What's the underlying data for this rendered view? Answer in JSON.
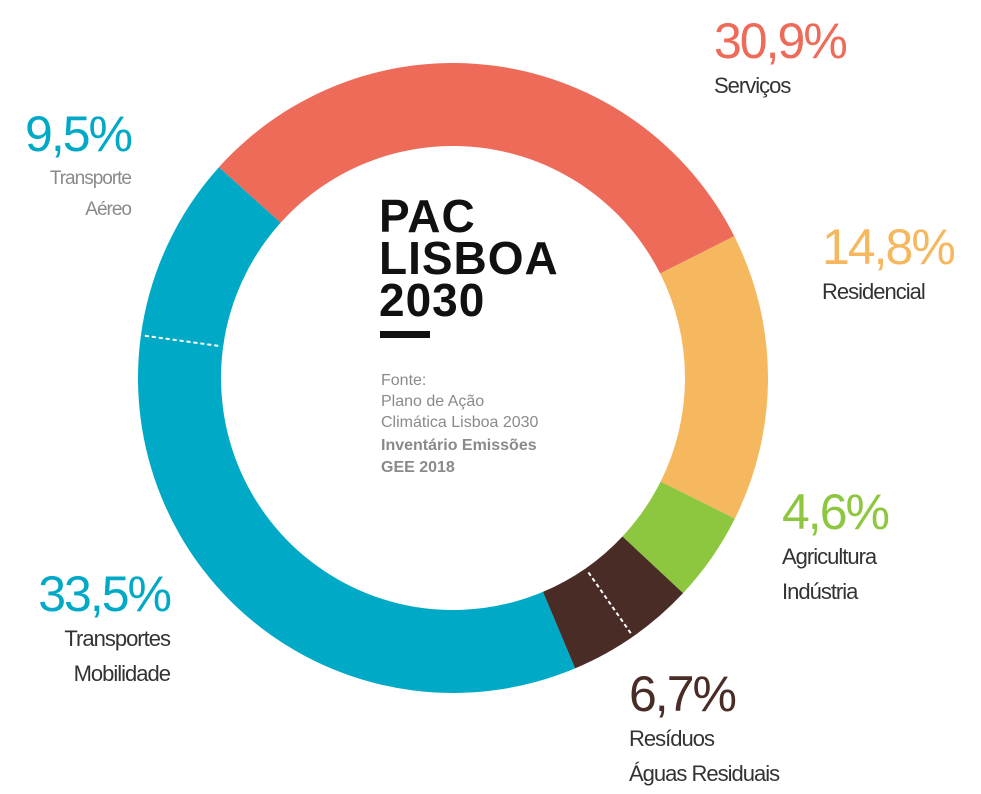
{
  "chart_data": {
    "type": "donut",
    "categories": [
      [
        "Serviços"
      ],
      [
        "Residencial"
      ],
      [
        "Agricultura",
        "Indústria"
      ],
      [
        "Resíduos",
        "Águas Residuais"
      ],
      [
        "Transportes",
        "Mobilidade"
      ],
      [
        "Transporte",
        "Aéreo"
      ]
    ],
    "values": [
      30.9,
      14.8,
      4.6,
      6.7,
      33.5,
      9.5
    ],
    "value_labels": [
      "30,9%",
      "14,8%",
      "4,6%",
      "6,7%",
      "33,5%",
      "9,5%"
    ],
    "colors": [
      "#ee6b5a",
      "#f6b85f",
      "#8dc63f",
      "#4a2c27",
      "#00a9c6",
      "#00a9c6"
    ],
    "center": {
      "title": [
        "PAC",
        "LISBOA",
        "2030"
      ],
      "source": [
        "Fonte:",
        "Plano de Ação",
        "Climática Lisboa 2030"
      ],
      "source_bold": [
        "Inventário Emissões",
        "GEE 2018"
      ]
    }
  }
}
